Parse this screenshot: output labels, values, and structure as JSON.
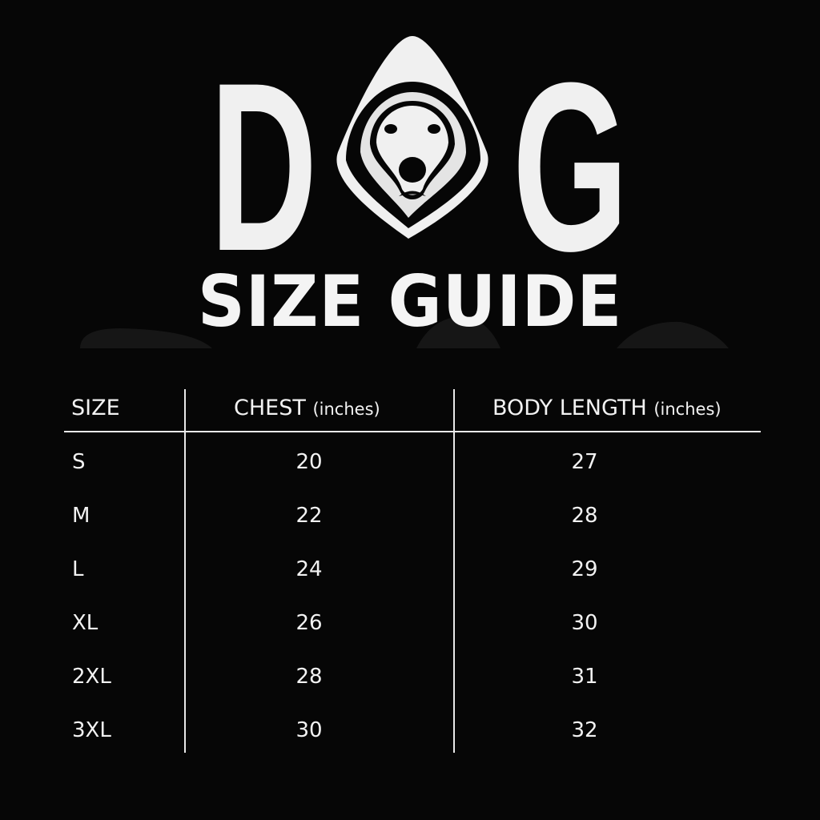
{
  "logo": {
    "letters": [
      "D",
      "G"
    ],
    "icon": "dog-face-hood-icon"
  },
  "title": "SIZE GUIDE",
  "table": {
    "headers": [
      {
        "label": "SIZE",
        "unit": ""
      },
      {
        "label": "CHEST",
        "unit": "(inches)"
      },
      {
        "label": "BODY LENGTH",
        "unit": "(inches)"
      }
    ],
    "rows": [
      [
        "S",
        "20",
        "27"
      ],
      [
        "M",
        "22",
        "28"
      ],
      [
        "L",
        "24",
        "29"
      ],
      [
        "XL",
        "26",
        "30"
      ],
      [
        "2XL",
        "28",
        "31"
      ],
      [
        "3XL",
        "30",
        "32"
      ]
    ]
  },
  "colors": {
    "background": "#060606",
    "foreground": "#f2f2f2"
  }
}
